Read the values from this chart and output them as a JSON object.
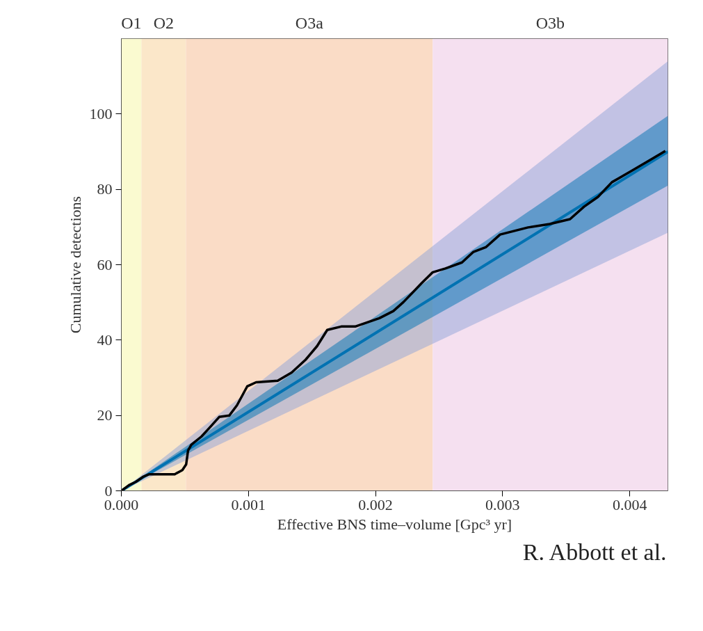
{
  "chart_data": {
    "type": "line",
    "xlabel": "Effective BNS time–volume [Gpc³ yr]",
    "ylabel": "Cumulative detections",
    "xlim": [
      0,
      0.0043
    ],
    "ylim": [
      0,
      120
    ],
    "xticks": [
      {
        "value": 0,
        "label": "0.000"
      },
      {
        "value": 0.001,
        "label": "0.001"
      },
      {
        "value": 0.002,
        "label": "0.002"
      },
      {
        "value": 0.003,
        "label": "0.003"
      },
      {
        "value": 0.004,
        "label": "0.004"
      }
    ],
    "yticks": [
      0,
      20,
      40,
      60,
      80,
      100
    ],
    "grid": false,
    "bands": [
      {
        "axis": "x",
        "from": 0,
        "to": 0.000158,
        "label": "O1",
        "color": "#fafad0"
      },
      {
        "axis": "x",
        "from": 0.000158,
        "to": 0.000508,
        "label": "O2",
        "color": "#fbe7c9"
      },
      {
        "axis": "x",
        "from": 0.000508,
        "to": 0.00245,
        "label": "O3a",
        "color": "#fadcc6"
      },
      {
        "axis": "x",
        "from": 0.00245,
        "to": 0.0043,
        "label": "O3b",
        "color": "#f5e0f0"
      }
    ],
    "series": [
      {
        "color": "#8fa4d8",
        "x": [
          0,
          0.0043
        ],
        "values": [
          null,
          null
        ],
        "lower": [
          0,
          68.5
        ],
        "upper": [
          0,
          114
        ]
      },
      {
        "color": "#0072b2",
        "x": [
          0,
          0.0043
        ],
        "values": [
          0,
          90
        ],
        "lower": [
          0,
          81
        ],
        "upper": [
          0,
          99.5
        ]
      },
      {
        "color": "#000000",
        "x": [
          0,
          6e-05,
          0.000115,
          0.00017,
          0.00022,
          0.00042,
          0.00048,
          0.00051,
          0.000525,
          0.00055,
          0.00063,
          0.00069,
          0.00077,
          0.00085,
          0.00091,
          0.00099,
          0.00106,
          0.00123,
          0.00134,
          0.00145,
          0.00154,
          0.00162,
          0.00173,
          0.00184,
          0.00203,
          0.00214,
          0.00222,
          0.00236,
          0.00245,
          0.00255,
          0.00268,
          0.00277,
          0.00287,
          0.00298,
          0.0032,
          0.00337,
          0.00353,
          0.00364,
          0.00375,
          0.00386,
          0.00402,
          0.00419,
          0.00428
        ],
        "values": [
          0,
          1.5,
          2.4,
          3.7,
          4.4,
          4.4,
          5.5,
          7,
          10.7,
          12.2,
          14.4,
          16.6,
          19.6,
          20,
          22.7,
          27.7,
          28.8,
          29.2,
          31.4,
          34.8,
          38.4,
          42.7,
          43.6,
          43.6,
          45.8,
          47.7,
          50.1,
          55,
          58,
          59,
          60.6,
          63.4,
          64.7,
          68,
          69.9,
          70.8,
          72.1,
          75.4,
          78,
          81.9,
          85,
          88.4,
          90.2
        ]
      }
    ],
    "annotations": [
      "R. Abbott et al."
    ]
  }
}
